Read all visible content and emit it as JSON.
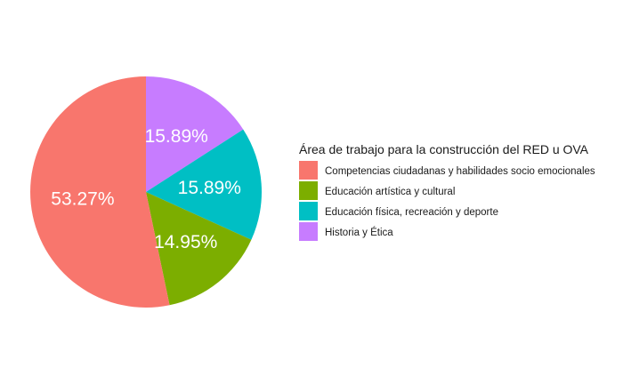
{
  "chart_data": {
    "type": "pie",
    "title": "",
    "legend_title": "Área de trabajo para la construcción del RED u OVA",
    "legend_position": "right",
    "start": "top, clockwise",
    "slices": [
      {
        "name": "Historia y Ética",
        "value": 15.89,
        "label": "15.89%",
        "color": "#C77CFF"
      },
      {
        "name": "Educación física, recreación y deporte",
        "value": 15.89,
        "label": "15.89%",
        "color": "#00BFC4"
      },
      {
        "name": "Educación artística y cultural",
        "value": 14.95,
        "label": "14.95%",
        "color": "#7CAE00"
      },
      {
        "name": "Competencias ciudadanas y habilidades socio emocionales",
        "value": 53.27,
        "label": "53.27%",
        "color": "#F8766D"
      }
    ],
    "legend_order": [
      "Competencias ciudadanas y habilidades socio emocionales",
      "Educación artística y cultural",
      "Educación física, recreación y deporte",
      "Historia y Ética"
    ]
  }
}
